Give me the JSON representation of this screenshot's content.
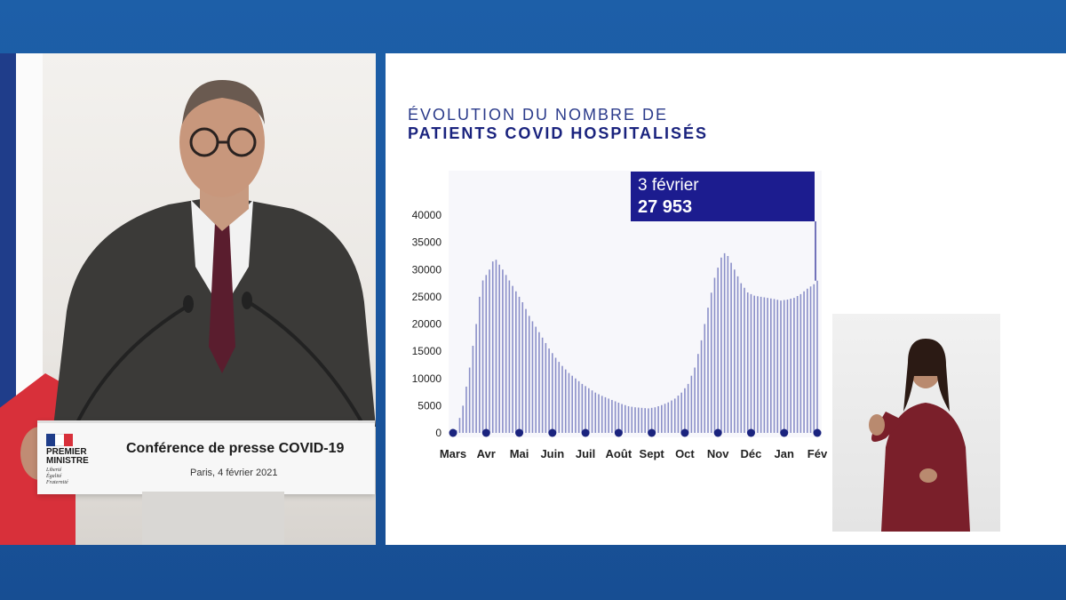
{
  "podium": {
    "logo_line1": "PREMIER",
    "logo_line2": "MINISTRE",
    "motto_line1": "Liberté",
    "motto_line2": "Égalité",
    "motto_line3": "Fraternité",
    "title": "Conférence de presse COVID-19",
    "subtitle": "Paris, 4 février 2021"
  },
  "colors": {
    "background_blue": "#1a57a0",
    "chart_bar": "#8a8fc8",
    "chart_dark_blue": "#1c1c8f",
    "flag_blue": "#1f3d8a",
    "flag_red": "#d8303a"
  },
  "chart_data": {
    "type": "bar",
    "title_line1": "ÉVOLUTION DU NOMBRE DE",
    "title_line2": "PATIENTS COVID HOSPITALISÉS",
    "xlabel": "",
    "ylabel": "",
    "ylim": [
      0,
      40000
    ],
    "yticks": [
      0,
      5000,
      10000,
      15000,
      20000,
      25000,
      30000,
      35000,
      40000
    ],
    "month_labels": [
      "Mars",
      "Avr",
      "Mai",
      "Juin",
      "Juil",
      "Août",
      "Sept",
      "Oct",
      "Nov",
      "Déc",
      "Jan",
      "Fév"
    ],
    "keypoints": [
      [
        0,
        0
      ],
      [
        1,
        500
      ],
      [
        3,
        5000
      ],
      [
        5,
        12000
      ],
      [
        7,
        20000
      ],
      [
        8,
        25000
      ],
      [
        9,
        28000
      ],
      [
        11,
        30000
      ],
      [
        12,
        31500
      ],
      [
        13,
        31800
      ],
      [
        15,
        30000
      ],
      [
        17,
        28000
      ],
      [
        19,
        26000
      ],
      [
        21,
        24000
      ],
      [
        23,
        21500
      ],
      [
        25,
        19500
      ],
      [
        27,
        17500
      ],
      [
        29,
        15500
      ],
      [
        31,
        13800
      ],
      [
        33,
        12300
      ],
      [
        35,
        11000
      ],
      [
        37,
        10000
      ],
      [
        39,
        9000
      ],
      [
        41,
        8200
      ],
      [
        43,
        7400
      ],
      [
        45,
        6800
      ],
      [
        47,
        6300
      ],
      [
        49,
        5800
      ],
      [
        51,
        5300
      ],
      [
        53,
        4900
      ],
      [
        55,
        4700
      ],
      [
        57,
        4600
      ],
      [
        59,
        4500
      ],
      [
        61,
        4700
      ],
      [
        63,
        5100
      ],
      [
        65,
        5600
      ],
      [
        67,
        6300
      ],
      [
        69,
        7400
      ],
      [
        71,
        9000
      ],
      [
        73,
        12000
      ],
      [
        75,
        17000
      ],
      [
        77,
        23000
      ],
      [
        79,
        28500
      ],
      [
        81,
        32200
      ],
      [
        82,
        33000
      ],
      [
        83,
        32500
      ],
      [
        85,
        30000
      ],
      [
        87,
        27500
      ],
      [
        89,
        25800
      ],
      [
        91,
        25200
      ],
      [
        93,
        25000
      ],
      [
        95,
        24800
      ],
      [
        97,
        24600
      ],
      [
        99,
        24300
      ],
      [
        101,
        24500
      ],
      [
        103,
        24800
      ],
      [
        105,
        25500
      ],
      [
        107,
        26500
      ],
      [
        109,
        27300
      ],
      [
        110,
        27953
      ]
    ],
    "highlight": {
      "date": "3 février",
      "value": "27 953"
    }
  }
}
